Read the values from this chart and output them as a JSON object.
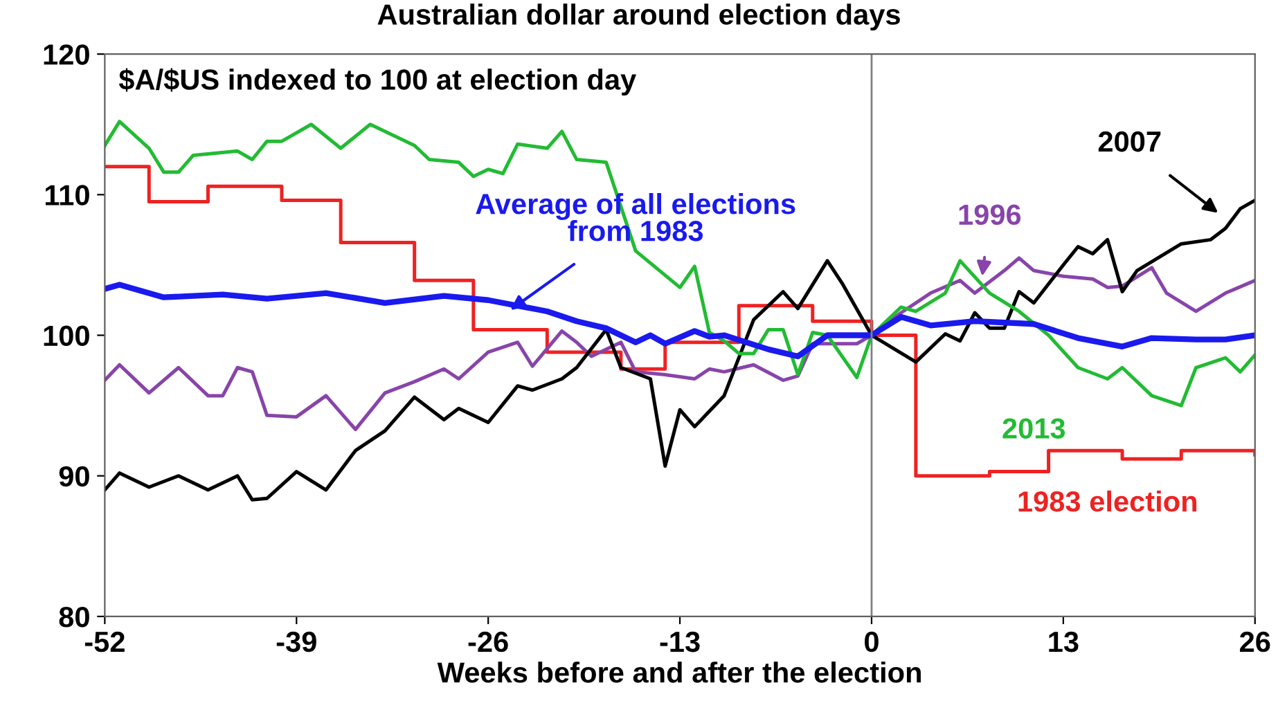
{
  "chart_data": {
    "type": "line",
    "title": "Australian dollar around election days",
    "subtitle": "$A/$US indexed to 100 at election day",
    "xlabel": "Weeks before and after the election",
    "xlim": [
      -52,
      26
    ],
    "xticks": [
      -52,
      -39,
      -26,
      -13,
      0,
      13,
      26
    ],
    "ylim": [
      80,
      120
    ],
    "yticks": [
      80,
      90,
      100,
      110,
      120
    ],
    "grid": false,
    "legend": false,
    "ref_lines": [
      {
        "axis": "x",
        "value": 0,
        "color": "#808080"
      }
    ],
    "series": [
      {
        "name": "1983 election",
        "type": "step",
        "color": "#ee2222",
        "x": [
          -52,
          -49,
          -45,
          -40,
          -36,
          -31,
          -27,
          -22,
          -17,
          -14,
          -9,
          -4,
          0,
          3,
          8,
          12,
          17,
          21,
          26
        ],
        "values": [
          112,
          109.5,
          110.6,
          109.6,
          106.6,
          103.9,
          100.4,
          98.8,
          97.6,
          99.5,
          102.1,
          101,
          100,
          90,
          90.3,
          91.8,
          91.2,
          91.8,
          91.5
        ]
      },
      {
        "name": "1996",
        "color": "#8844aa",
        "x": [
          -52,
          -51,
          -49,
          -47,
          -45,
          -44,
          -43,
          -42,
          -41,
          -39,
          -37,
          -35,
          -33,
          -31,
          -29,
          -28,
          -26,
          -24,
          -23,
          -21,
          -20,
          -19,
          -17,
          -16,
          -14,
          -12,
          -11,
          -10,
          -8,
          -6,
          -5,
          -4,
          -1,
          0,
          2,
          4,
          6,
          7,
          9,
          10,
          11,
          13,
          15,
          16,
          17,
          19,
          20,
          22,
          24,
          26
        ],
        "values": [
          96.8,
          97.9,
          95.9,
          97.7,
          95.7,
          95.7,
          97.7,
          97.4,
          94.3,
          94.2,
          95.7,
          93.3,
          95.9,
          96.7,
          97.6,
          96.9,
          98.8,
          99.5,
          97.8,
          100.3,
          99.5,
          98.5,
          99.5,
          97.4,
          97.2,
          96.9,
          97.6,
          97.4,
          97.9,
          96.8,
          97.1,
          99.4,
          99.4,
          100,
          101.6,
          103,
          103.9,
          103,
          104.6,
          105.5,
          104.6,
          104.2,
          104,
          103.4,
          103.5,
          104.8,
          103,
          101.7,
          103,
          103.9
        ]
      },
      {
        "name": "2007",
        "color": "#000000",
        "x": [
          -52,
          -51,
          -49,
          -47,
          -45,
          -43,
          -42,
          -41,
          -39,
          -37,
          -35,
          -33,
          -31,
          -29,
          -28,
          -26,
          -24,
          -23,
          -21,
          -20,
          -18,
          -17,
          -15,
          -14,
          -13,
          -12,
          -10,
          -8,
          -6,
          -5,
          -3,
          -2,
          0,
          3,
          5,
          6,
          7,
          8,
          9,
          10,
          11,
          13,
          14,
          15,
          16,
          17,
          18,
          21,
          23,
          24,
          25,
          26
        ],
        "values": [
          89,
          90.2,
          89.2,
          90,
          89,
          90,
          88.3,
          88.4,
          90.3,
          89,
          91.8,
          93.2,
          95.6,
          94,
          94.8,
          93.8,
          96.4,
          96.1,
          96.9,
          97.7,
          100.4,
          97.7,
          96.9,
          90.7,
          94.7,
          93.5,
          95.7,
          101.1,
          103.1,
          101.9,
          105.3,
          103.7,
          100,
          98.1,
          100.1,
          99.6,
          101.6,
          100.5,
          100.5,
          103.1,
          102.3,
          105,
          106.3,
          105.8,
          106.8,
          103.1,
          104.6,
          106.5,
          106.8,
          107.6,
          109,
          109.6
        ]
      },
      {
        "name": "2013",
        "color": "#22bb33",
        "x": [
          -52,
          -51,
          -49,
          -48,
          -47,
          -46,
          -43,
          -42,
          -41,
          -40,
          -38,
          -36,
          -34,
          -31,
          -30,
          -28,
          -27,
          -26,
          -25,
          -24,
          -22,
          -21,
          -20,
          -18,
          -16,
          -13,
          -12,
          -11,
          -10,
          -9,
          -8,
          -7,
          -6,
          -5,
          -4,
          -3,
          -1,
          0,
          2,
          3,
          5,
          6,
          8,
          10,
          12,
          14,
          16,
          17,
          19,
          21,
          22,
          24,
          25,
          26
        ],
        "values": [
          113.5,
          115.2,
          113.3,
          111.6,
          111.6,
          112.8,
          113.1,
          112.5,
          113.8,
          113.8,
          115,
          113.3,
          115,
          113.5,
          112.5,
          112.3,
          111.3,
          111.8,
          111.5,
          113.6,
          113.3,
          114.5,
          112.5,
          112.3,
          106,
          103.4,
          104.9,
          100.2,
          99.6,
          98.7,
          98.7,
          100.4,
          100.4,
          97.2,
          100.2,
          100,
          97,
          100,
          102,
          101.7,
          103,
          105.3,
          103,
          101.7,
          100,
          97.7,
          96.9,
          97.7,
          95.7,
          95,
          97.7,
          98.4,
          97.4,
          98.6
        ]
      },
      {
        "name": "Average of all elections from 1983",
        "color": "#1a1aee",
        "x": [
          -52,
          -51,
          -48,
          -44,
          -41,
          -37,
          -33,
          -29,
          -26,
          -22,
          -20,
          -18,
          -16,
          -15,
          -14,
          -12,
          -11,
          -10,
          -7,
          -5,
          -3,
          0,
          2,
          4,
          7,
          11,
          14,
          17,
          19,
          22,
          24,
          26
        ],
        "values": [
          103.3,
          103.6,
          102.7,
          102.9,
          102.6,
          103,
          102.3,
          102.8,
          102.5,
          101.7,
          101,
          100.5,
          99.5,
          100,
          99.4,
          100.3,
          99.9,
          100,
          99,
          98.5,
          100,
          100,
          101.3,
          100.7,
          101,
          100.8,
          99.8,
          99.2,
          99.8,
          99.7,
          99.7,
          100
        ]
      }
    ]
  }
}
